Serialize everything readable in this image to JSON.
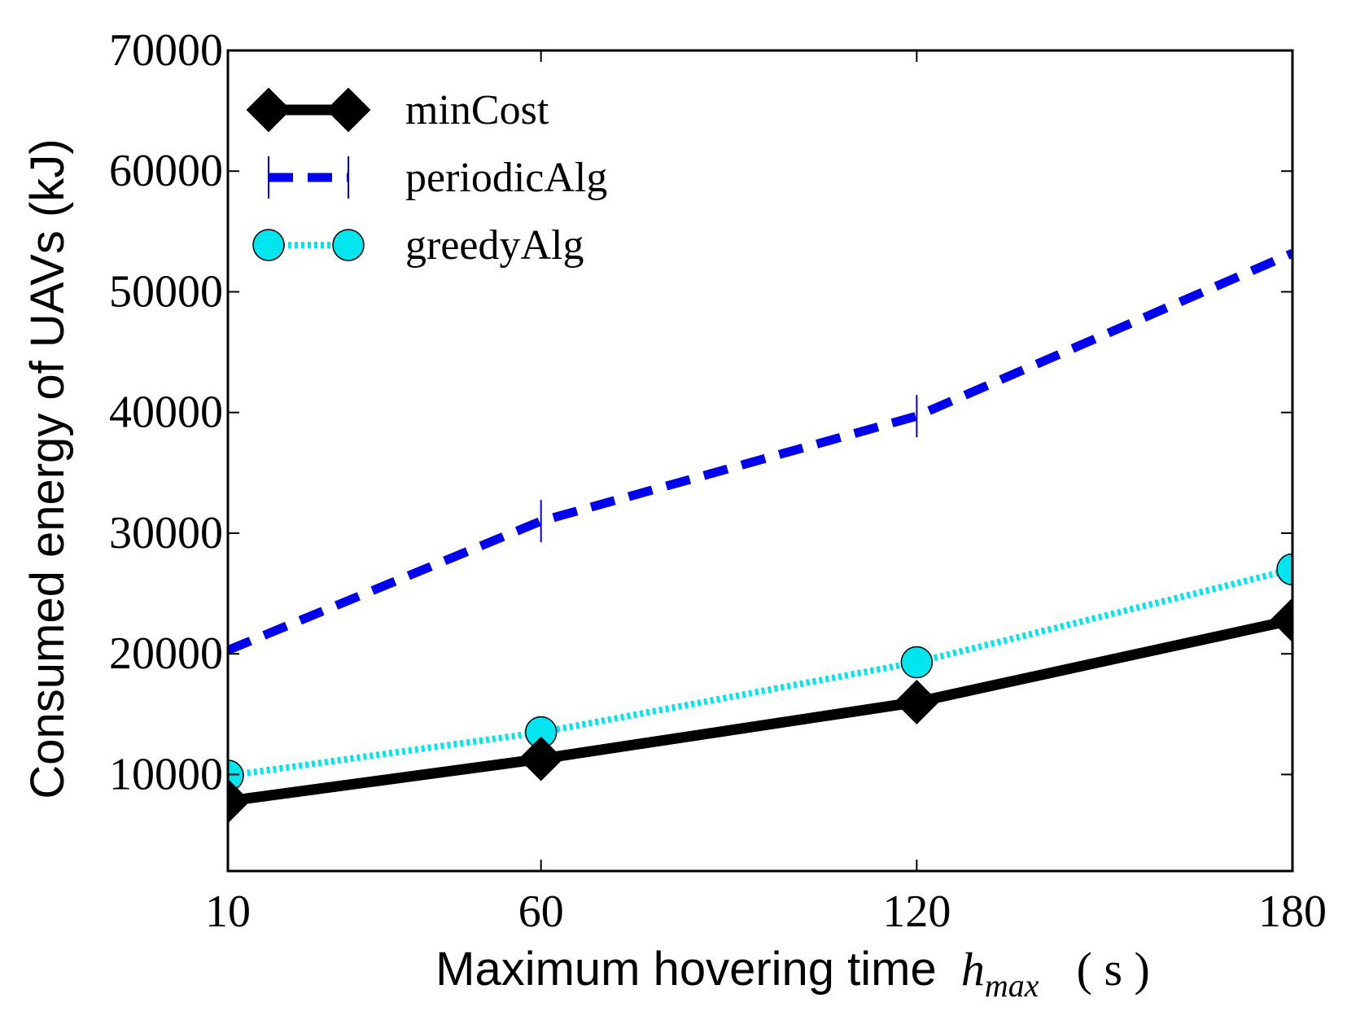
{
  "chart_data": {
    "type": "line",
    "title": "",
    "xlabel": "Maximum hovering time",
    "xlabel_math_base": "h",
    "xlabel_math_sub": "max",
    "xlabel_unit": "( s )",
    "ylabel": "Consumed energy of UAVs (kJ)",
    "categories": [
      "10",
      "60",
      "120",
      "180"
    ],
    "x": [
      10,
      60,
      120,
      180
    ],
    "xlim": [
      10,
      180
    ],
    "ylim": [
      2000,
      70000
    ],
    "yticks": [
      10000,
      20000,
      30000,
      40000,
      50000,
      60000,
      70000
    ],
    "ytick_labels": [
      "10000",
      "20000",
      "30000",
      "40000",
      "50000",
      "60000",
      "70000"
    ],
    "grid": false,
    "legend_position": "top-left",
    "series": [
      {
        "name": "minCost",
        "values": [
          7800,
          11300,
          16000,
          22800
        ],
        "color": "#000000",
        "style": "solid",
        "marker": "diamond"
      },
      {
        "name": "periodicAlg",
        "values": [
          20300,
          31000,
          39700,
          53200
        ],
        "color": "#0000ee",
        "style": "dashed",
        "marker": "vline"
      },
      {
        "name": "greedyAlg",
        "values": [
          9900,
          13500,
          19300,
          27000
        ],
        "color": "#00e5ee",
        "style": "dotted",
        "marker": "circle"
      }
    ]
  }
}
